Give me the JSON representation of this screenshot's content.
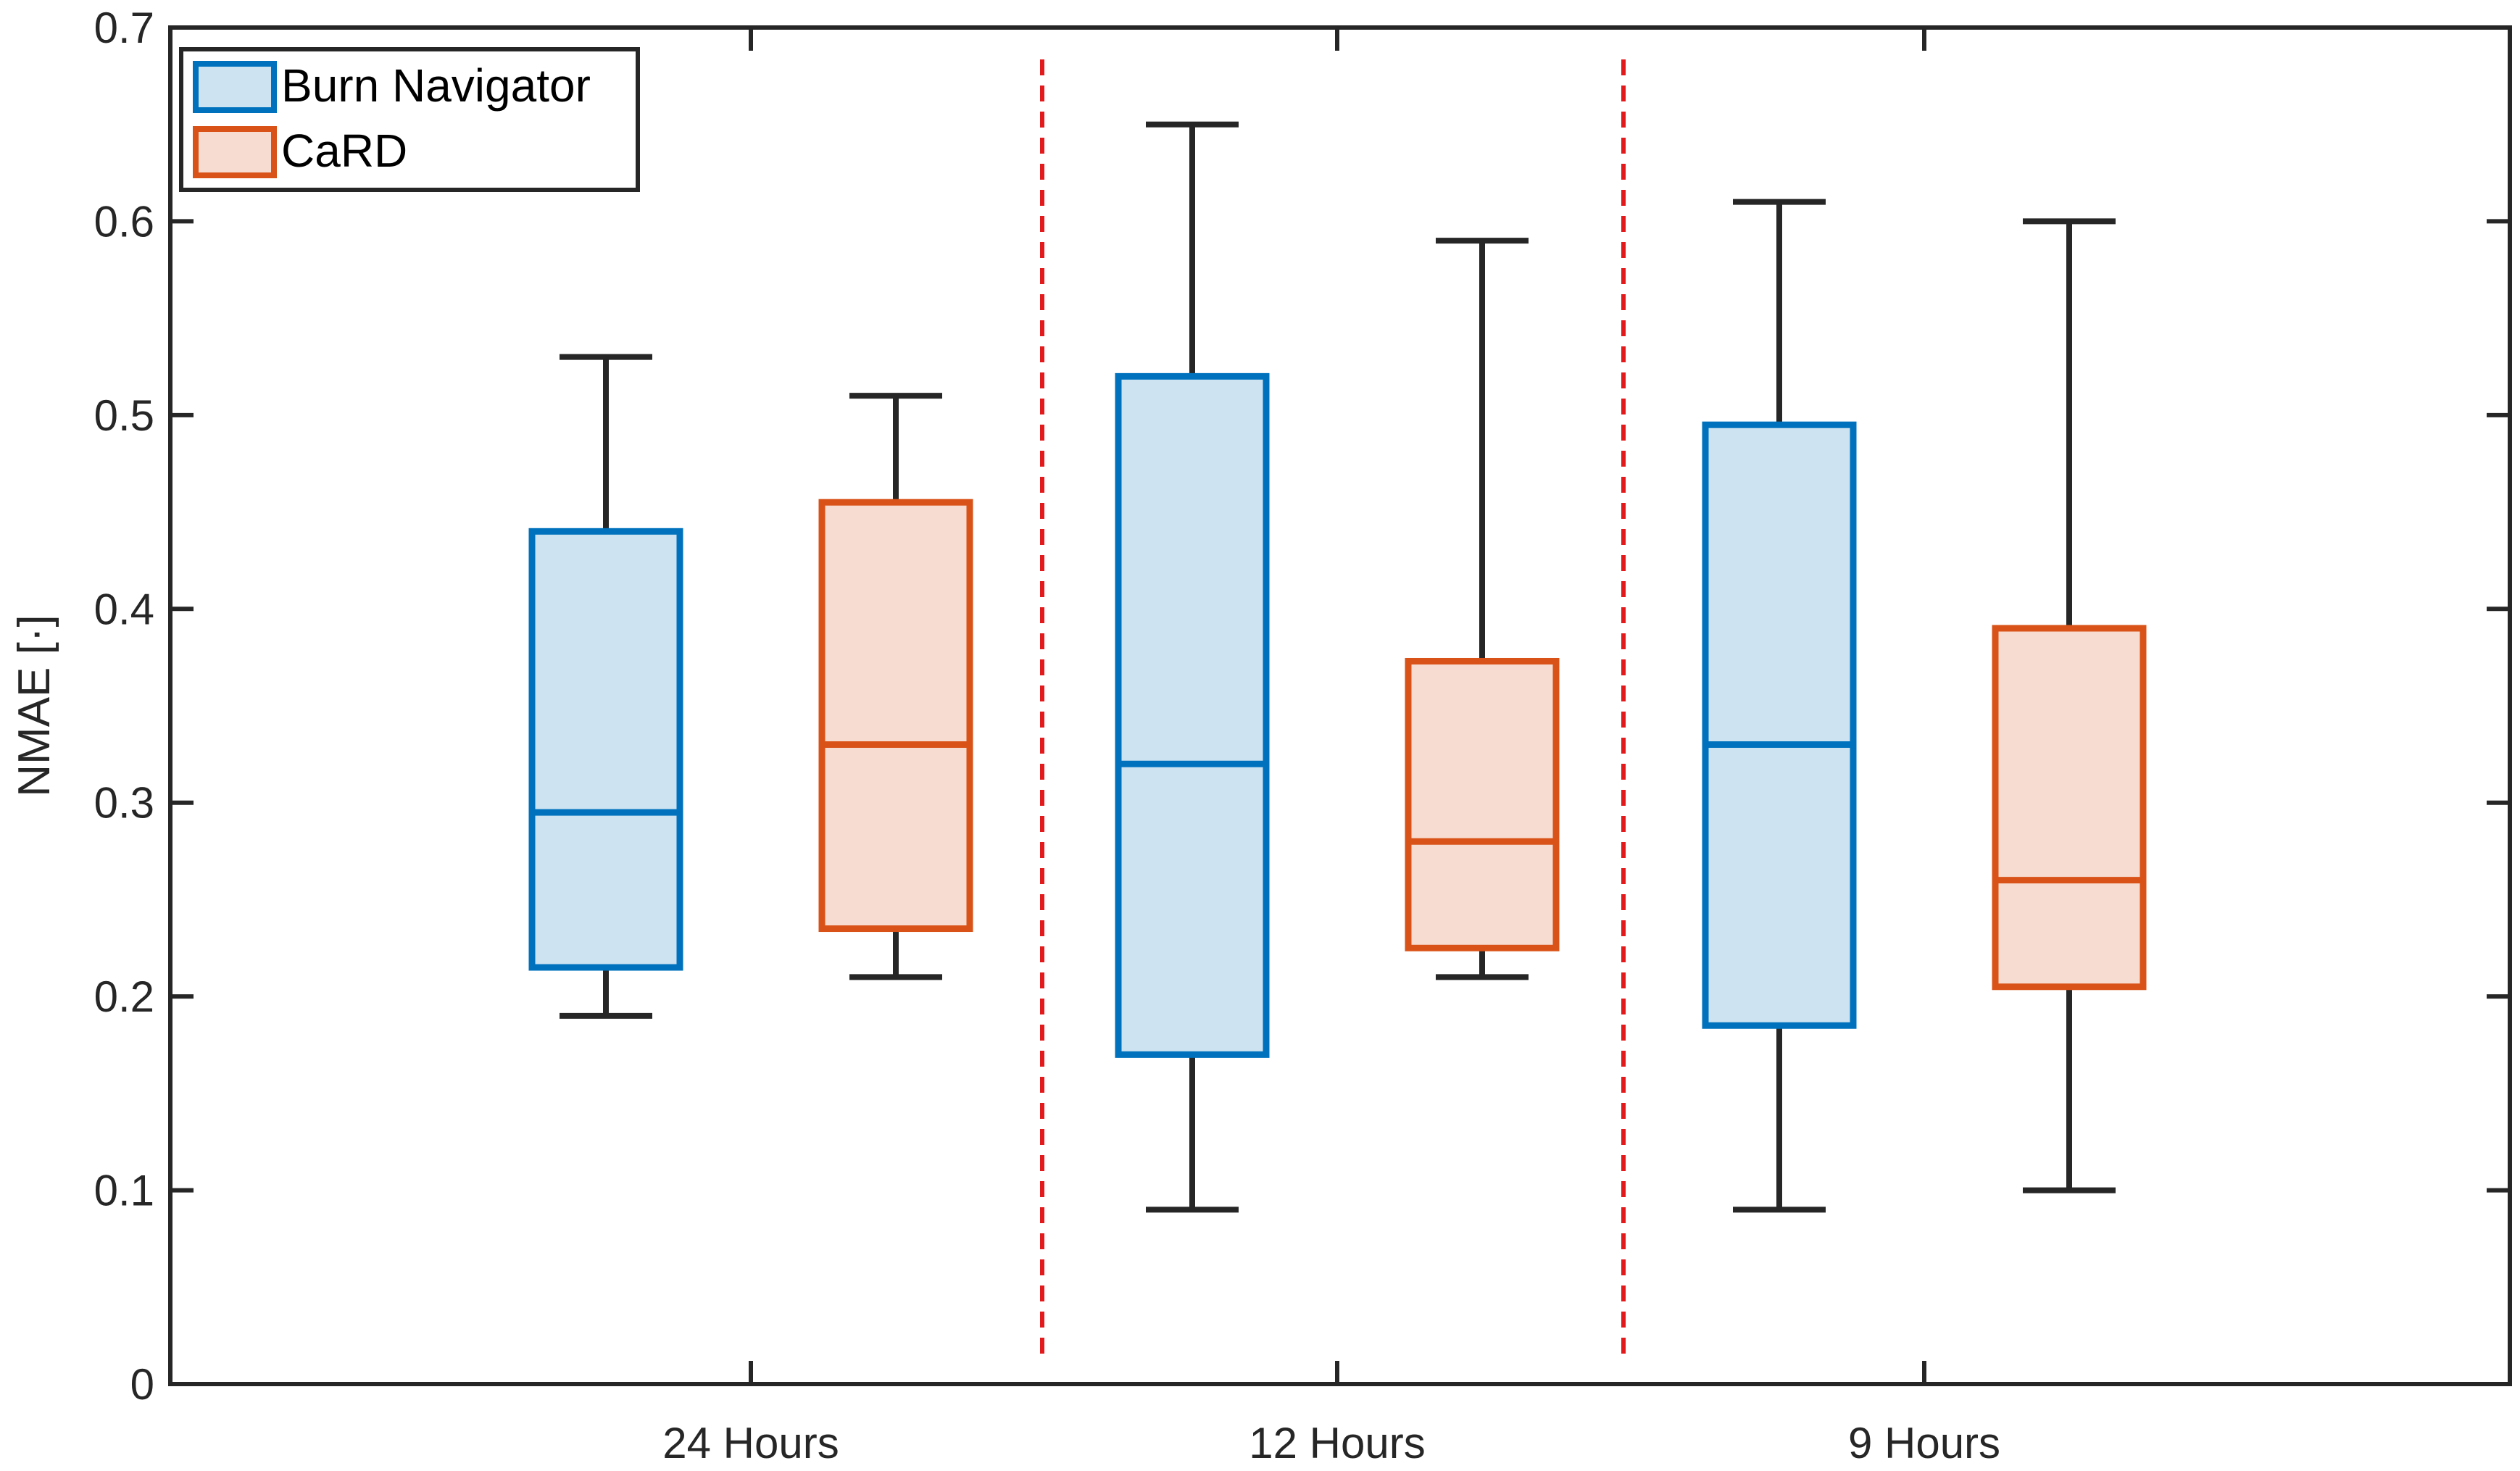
{
  "chart_data": {
    "type": "boxplot",
    "title": "",
    "xlabel": "",
    "ylabel": "NMAE [·]",
    "ylim": [
      0,
      0.7
    ],
    "yticks": [
      0,
      0.1,
      0.2,
      0.3,
      0.4,
      0.5,
      0.6,
      0.7
    ],
    "ytick_labels": [
      "0",
      "0.1",
      "0.2",
      "0.3",
      "0.4",
      "0.5",
      "0.6",
      "0.7"
    ],
    "categories": [
      "24 Hours",
      "12 Hours",
      "9 Hours"
    ],
    "group_separators": true,
    "legend": {
      "placement": "top-left"
    },
    "series": [
      {
        "name": "Burn Navigator",
        "edge_color": "#0072BD",
        "fill_color": "#CDE3F1",
        "boxes": [
          {
            "category": "24 Hours",
            "min": 0.19,
            "q1": 0.215,
            "median": 0.295,
            "q3": 0.44,
            "max": 0.53
          },
          {
            "category": "12 Hours",
            "min": 0.09,
            "q1": 0.17,
            "median": 0.32,
            "q3": 0.52,
            "max": 0.65
          },
          {
            "category": "9 Hours",
            "min": 0.09,
            "q1": 0.185,
            "median": 0.33,
            "q3": 0.495,
            "max": 0.61
          }
        ]
      },
      {
        "name": "CaRD",
        "edge_color": "#D95319",
        "fill_color": "#F7DDD1",
        "boxes": [
          {
            "category": "24 Hours",
            "min": 0.21,
            "q1": 0.235,
            "median": 0.33,
            "q3": 0.455,
            "max": 0.51
          },
          {
            "category": "12 Hours",
            "min": 0.21,
            "q1": 0.225,
            "median": 0.28,
            "q3": 0.373,
            "max": 0.59
          },
          {
            "category": "9 Hours",
            "min": 0.1,
            "q1": 0.205,
            "median": 0.26,
            "q3": 0.39,
            "max": 0.6
          }
        ]
      }
    ],
    "whisker_color": "#262626",
    "separator_color": "#E31A1C"
  }
}
